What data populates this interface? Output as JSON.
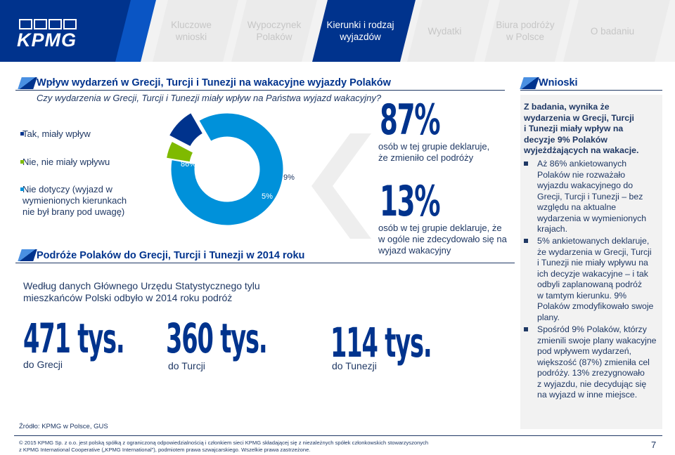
{
  "header": {
    "logo": "KPMG",
    "tabs": [
      {
        "line1": "Kluczowe",
        "line2": "wnioski"
      },
      {
        "line1": "Wypoczynek",
        "line2": "Polaków"
      },
      {
        "line1": "Kierunki i rodzaj",
        "line2": "wyjazdów"
      },
      {
        "line1": "Wydatki",
        "line2": ""
      },
      {
        "line1": "Biura podróży",
        "line2": "w Polsce"
      },
      {
        "line1": "O badaniu",
        "line2": ""
      }
    ]
  },
  "section1": {
    "title": "Wpływ wydarzeń w Grecji, Turcji i Tunezji na wakacyjne wyjazdy Polaków",
    "question": "Czy wydarzenia w Grecji, Turcji i Tunezji miały wpływ na Państwa wyjazd wakacyjny?"
  },
  "legend": [
    {
      "line1": "Tak, miały wpływ",
      "line2": "",
      "line3": "",
      "color": "#00338d"
    },
    {
      "line1": "Nie, nie miały wpływu",
      "line2": "",
      "line3": "",
      "color": "#7fba00"
    },
    {
      "line1": "Nie dotyczy (wyjazd w",
      "line2": "wymienionych kierunkach",
      "line3": "nie był brany pod uwagę)",
      "color": "#0091da"
    }
  ],
  "chart_data": {
    "type": "pie",
    "donut": true,
    "categories": [
      "Nie dotyczy (wyjazd w wymienionych kierunkach nie był brany pod uwagę)",
      "Nie, nie miały wpływu",
      "Tak, miały wpływ"
    ],
    "values": [
      86,
      5,
      9
    ],
    "labels": [
      "86%",
      "5%",
      "9%"
    ],
    "colors": [
      "#0091da",
      "#7fba00",
      "#00338d"
    ]
  },
  "stats": [
    {
      "value": "87%",
      "line1": "osób w tej grupie deklaruje,",
      "line2": "że zmieniło cel podróży"
    },
    {
      "value": "13%",
      "line1": "osób w tej grupie deklaruje, że",
      "line2": "w ogóle nie zdecydowało się na",
      "line3": "wyjazd wakacyjny"
    }
  ],
  "section2": {
    "title": "Podróże Polaków do Grecji, Turcji i Tunezji w 2014 roku",
    "text_line1": "Według danych Głównego Urzędu Statystycznego tylu",
    "text_line2": "mieszkańców Polski odbyło w 2014 roku podróż",
    "destinations": [
      {
        "value": "471 tys.",
        "label": "do Grecji"
      },
      {
        "value": "360 tys.",
        "label": "do Turcji"
      },
      {
        "value": "114 tys.",
        "label": "do Tunezji"
      }
    ]
  },
  "conclusions": {
    "title": "Wnioski",
    "lead": [
      "Z badania, wynika że",
      "wydarzenia w Grecji, Turcji",
      "i Tunezji miały wpływ na",
      "decyzje 9% Polaków",
      "wyjeżdżających na wakacje."
    ],
    "bullets": [
      [
        "Aż 86% ankietowanych",
        "Polaków nie rozważało",
        "wyjazdu wakacyjnego do",
        "Grecji, Turcji i Tunezji – bez",
        "względu na aktualne",
        "wydarzenia w wymienionych",
        "krajach."
      ],
      [
        "5% ankietowanych deklaruje,",
        "że wydarzenia w Grecji, Turcji",
        "i Tunezji nie miały wpływu na",
        "ich decyzje wakacyjne – i tak",
        "odbyli zaplanowaną podróż",
        "w tamtym kierunku. 9%",
        "Polaków zmodyfikowało swoje",
        "plany."
      ],
      [
        "Spośród 9% Polaków, którzy",
        "zmienili swoje plany wakacyjne",
        "pod wpływem wydarzeń,",
        "większość (87%) zmieniła cel",
        "podróży. 13% zrezygnowało",
        "z wyjazdu, nie decydując się",
        "na wyjazd w inne miejsce."
      ]
    ]
  },
  "footer": {
    "source": "Źródło: KPMG w Polsce, GUS",
    "copyright_line1": "© 2015 KPMG Sp. z o.o. jest polską spółką z ograniczoną odpowiedzialnością i członkiem sieci KPMG składającej się z niezależnych spółek członkowskich stowarzyszonych",
    "copyright_line2": "z KPMG International Cooperative („KPMG International”), podmiotem prawa szwajcarskiego. Wszelkie prawa zastrzeżone.",
    "page": "7"
  }
}
